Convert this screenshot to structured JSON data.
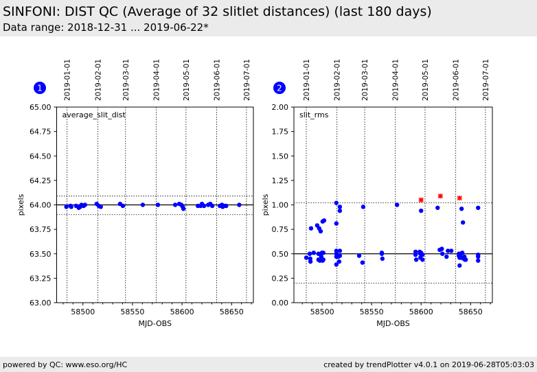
{
  "header": {
    "title": "SINFONI: DIST QC (Average of 32 slitlet distances) (last 180 days)",
    "subtitle": "Data range: 2018-12-31 ... 2019-06-22*"
  },
  "footer": {
    "left": "powered by QC: www.eso.org/HC",
    "right": "created by trendPlotter v4.0.1 on 2019-06-28T05:03:03"
  },
  "colors": {
    "header_bg": "#ebebeb",
    "point": "#0000ff",
    "outlier": "#ff0000",
    "badge": "#0000ff"
  },
  "chart_data": [
    {
      "type": "scatter",
      "badge": "1",
      "label": "average_slit_dist",
      "xlabel": "MJD-OBS",
      "ylabel": "pixels",
      "xlim": [
        58473.5,
        58672
      ],
      "ylim": [
        63.0,
        65.0
      ],
      "xticks": [
        "58500",
        "58550",
        "58600",
        "58650"
      ],
      "xtick_values": [
        58500,
        58550,
        58600,
        58650
      ],
      "yticks": [
        "63.00",
        "63.25",
        "63.50",
        "63.75",
        "64.00",
        "64.25",
        "64.50",
        "64.75",
        "65.00"
      ],
      "ytick_values": [
        63.0,
        63.25,
        63.5,
        63.75,
        64.0,
        64.25,
        64.5,
        64.75,
        65.0
      ],
      "date_ticks": [
        "2019-01-01",
        "2019-02-01",
        "2019-03-01",
        "2019-04-01",
        "2019-05-01",
        "2019-06-01",
        "2019-07-01"
      ],
      "date_tick_values": [
        58484,
        58515,
        58543,
        58574,
        58604,
        58635,
        58665
      ],
      "reference_line": 64.0,
      "threshold_lines": [
        64.09,
        63.9
      ],
      "grid": true,
      "points": [
        [
          58483.3,
          63.98
        ],
        [
          58487.5,
          63.99
        ],
        [
          58488.2,
          63.98
        ],
        [
          58493.1,
          63.99
        ],
        [
          58495.8,
          63.97
        ],
        [
          58497.2,
          63.98
        ],
        [
          58498.6,
          64.0
        ],
        [
          58500.7,
          63.99
        ],
        [
          58502.1,
          64.0
        ],
        [
          58513.9,
          64.01
        ],
        [
          58516,
          63.99
        ],
        [
          58518,
          63.98
        ],
        [
          58537.5,
          64.01
        ],
        [
          58540.3,
          63.99
        ],
        [
          58560.4,
          64.0
        ],
        [
          58575.7,
          64.0
        ],
        [
          58593.1,
          64.0
        ],
        [
          58597.2,
          64.01
        ],
        [
          58599.3,
          64.0
        ],
        [
          58600.7,
          63.98
        ],
        [
          58601.4,
          63.96
        ],
        [
          58616,
          63.99
        ],
        [
          58618.8,
          63.99
        ],
        [
          58620.1,
          64.01
        ],
        [
          58622.2,
          63.99
        ],
        [
          58626.4,
          64.0
        ],
        [
          58628.5,
          64.01
        ],
        [
          58630.5,
          63.99
        ],
        [
          58638.2,
          63.99
        ],
        [
          58640.3,
          64.0
        ],
        [
          58641,
          63.98
        ],
        [
          58642.4,
          63.99
        ],
        [
          58644.5,
          63.99
        ],
        [
          58657.7,
          64.0
        ]
      ],
      "outliers": []
    },
    {
      "type": "scatter",
      "badge": "2",
      "label": "slit_rms",
      "xlabel": "MJD-OBS",
      "ylabel": "pixels",
      "xlim": [
        58471.5,
        58672
      ],
      "ylim": [
        0.0,
        2.0
      ],
      "xticks": [
        "58500",
        "58550",
        "58600",
        "58650"
      ],
      "xtick_values": [
        58500,
        58550,
        58600,
        58650
      ],
      "yticks": [
        "0.00",
        "0.25",
        "0.50",
        "0.75",
        "1.00",
        "1.25",
        "1.50",
        "1.75",
        "2.00"
      ],
      "ytick_values": [
        0.0,
        0.25,
        0.5,
        0.75,
        1.0,
        1.25,
        1.5,
        1.75,
        2.0
      ],
      "date_ticks": [
        "2019-01-01",
        "2019-02-01",
        "2019-03-01",
        "2019-04-01",
        "2019-05-01",
        "2019-06-01",
        "2019-07-01"
      ],
      "date_tick_values": [
        58484,
        58515,
        58543,
        58574,
        58604,
        58635,
        58665
      ],
      "reference_line": 0.5,
      "threshold_lines": [
        1.02,
        0.2
      ],
      "grid": true,
      "points": [
        [
          58484,
          0.46
        ],
        [
          58487.5,
          0.5
        ],
        [
          58488,
          0.45
        ],
        [
          58488.2,
          0.42
        ],
        [
          58488.8,
          0.76
        ],
        [
          58491.5,
          0.51
        ],
        [
          58495,
          0.79
        ],
        [
          58496.3,
          0.5
        ],
        [
          58496.3,
          0.44
        ],
        [
          58497,
          0.76
        ],
        [
          58497.7,
          0.43
        ],
        [
          58498.5,
          0.73
        ],
        [
          58498.5,
          0.49
        ],
        [
          58499.1,
          0.47
        ],
        [
          58499.8,
          0.51
        ],
        [
          58500.5,
          0.83
        ],
        [
          58500.5,
          0.43
        ],
        [
          58501.2,
          0.51
        ],
        [
          58501.2,
          0.44
        ],
        [
          58502,
          0.84
        ],
        [
          58514.4,
          1.02
        ],
        [
          58514.4,
          0.81
        ],
        [
          58514.4,
          0.53
        ],
        [
          58514.4,
          0.5
        ],
        [
          58514.4,
          0.47
        ],
        [
          58514.4,
          0.39
        ],
        [
          58516.5,
          0.47
        ],
        [
          58517.2,
          0.42
        ],
        [
          58517.9,
          0.98
        ],
        [
          58517.9,
          0.94
        ],
        [
          58517.9,
          0.53
        ],
        [
          58517.9,
          0.48
        ],
        [
          58537.4,
          0.48
        ],
        [
          58540.8,
          0.41
        ],
        [
          58541.5,
          0.98
        ],
        [
          58560.3,
          0.51
        ],
        [
          58560.3,
          0.5
        ],
        [
          58560.9,
          0.45
        ],
        [
          58575.7,
          1.0
        ],
        [
          58594.4,
          0.52
        ],
        [
          58594.4,
          0.49
        ],
        [
          58595.1,
          0.44
        ],
        [
          58598.6,
          0.52
        ],
        [
          58599.3,
          0.5
        ],
        [
          58599.3,
          0.46
        ],
        [
          58600,
          0.94
        ],
        [
          58600,
          0.51
        ],
        [
          58601.4,
          0.49
        ],
        [
          58601.4,
          0.44
        ],
        [
          58616.7,
          0.97
        ],
        [
          58618.8,
          0.54
        ],
        [
          58620.9,
          0.55
        ],
        [
          58621.5,
          0.5
        ],
        [
          58625.7,
          0.47
        ],
        [
          58627.1,
          0.53
        ],
        [
          58630.5,
          0.53
        ],
        [
          58638.2,
          0.5
        ],
        [
          58638.2,
          0.48
        ],
        [
          58638.9,
          0.46
        ],
        [
          58638.9,
          0.38
        ],
        [
          58640.3,
          0.5
        ],
        [
          58640.3,
          0.46
        ],
        [
          58640.9,
          0.96
        ],
        [
          58641.6,
          0.51
        ],
        [
          58642.3,
          0.82
        ],
        [
          58643,
          0.45
        ],
        [
          58643.7,
          0.47
        ],
        [
          58644.4,
          0.44
        ],
        [
          58645.1,
          0.44
        ],
        [
          58657.6,
          0.97
        ],
        [
          58657.6,
          0.49
        ],
        [
          58657.6,
          0.47
        ],
        [
          58657.6,
          0.43
        ]
      ],
      "outliers": [
        [
          58600,
          1.05
        ],
        [
          58619.5,
          1.09
        ],
        [
          58638.9,
          1.07
        ]
      ]
    }
  ]
}
